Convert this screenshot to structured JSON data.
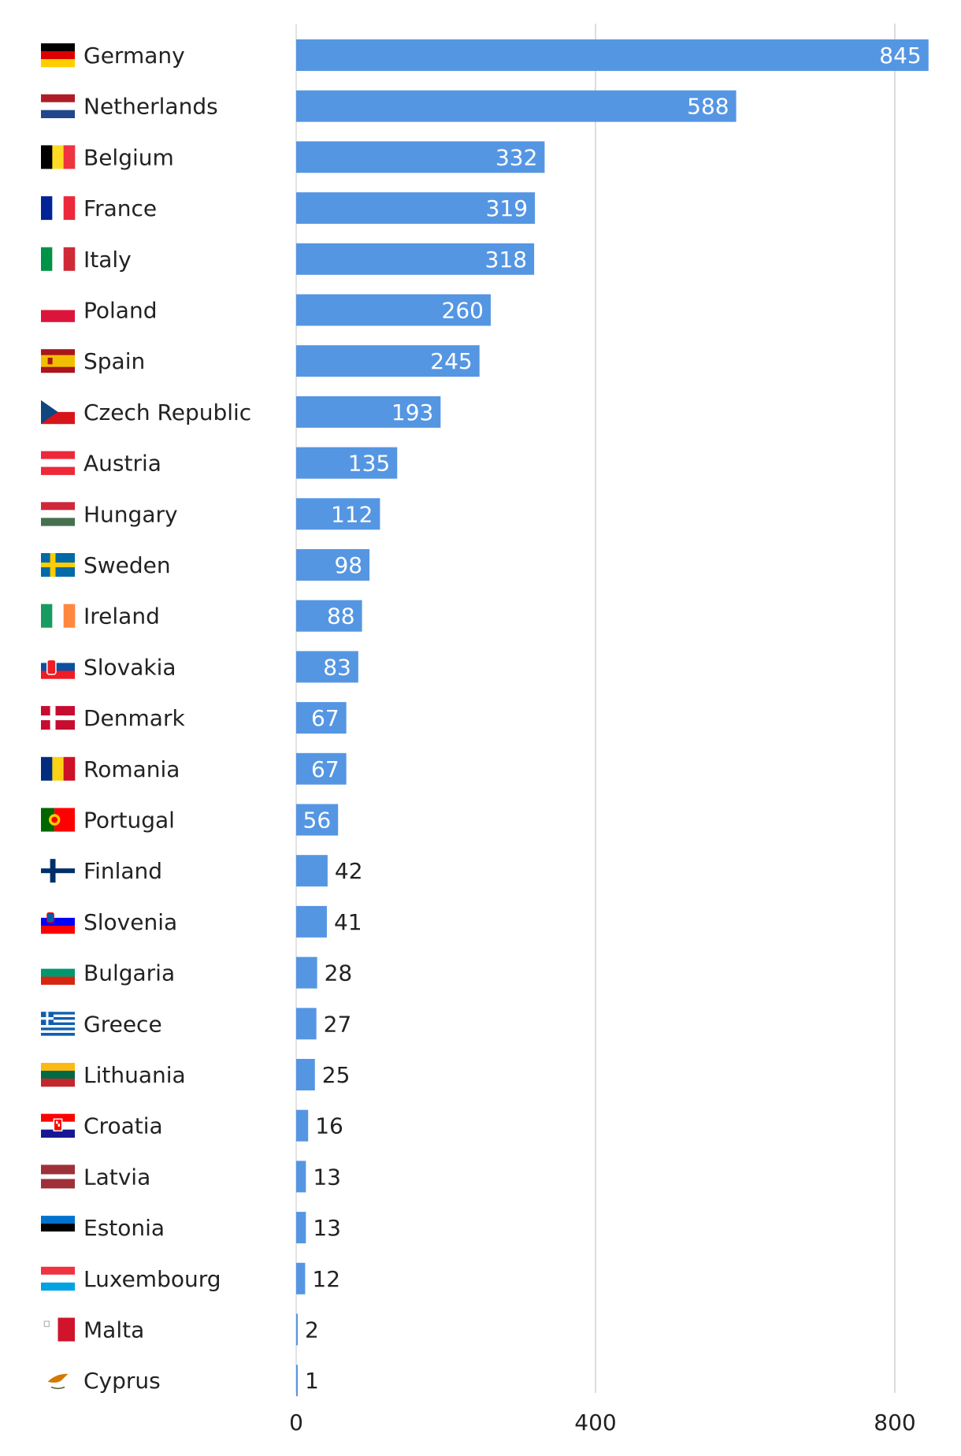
{
  "chart_data": {
    "type": "bar",
    "orientation": "horizontal",
    "categories": [
      "Germany",
      "Netherlands",
      "Belgium",
      "France",
      "Italy",
      "Poland",
      "Spain",
      "Czech Republic",
      "Austria",
      "Hungary",
      "Sweden",
      "Ireland",
      "Slovakia",
      "Denmark",
      "Romania",
      "Portugal",
      "Finland",
      "Slovenia",
      "Bulgaria",
      "Greece",
      "Lithuania",
      "Croatia",
      "Latvia",
      "Estonia",
      "Luxembourg",
      "Malta",
      "Cyprus"
    ],
    "values": [
      845,
      588,
      332,
      319,
      318,
      260,
      245,
      193,
      135,
      112,
      98,
      88,
      83,
      67,
      67,
      56,
      42,
      41,
      28,
      27,
      25,
      16,
      13,
      13,
      12,
      2,
      1
    ],
    "xlim": [
      0,
      850
    ],
    "xticks": [
      0,
      400,
      800
    ],
    "grid": true,
    "bar_color": "#5596e3",
    "title": "",
    "xlabel": "",
    "ylabel": ""
  }
}
